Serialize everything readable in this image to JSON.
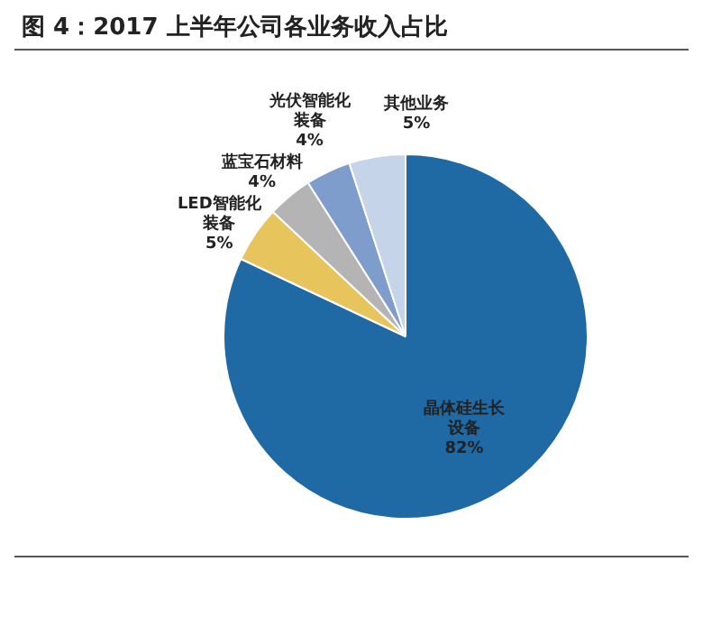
{
  "chart_data": {
    "type": "pie",
    "title": "图 4：2017 上半年公司各业务收入占比",
    "categories": [
      "晶体硅生长设备",
      "LED智能化装备",
      "蓝宝石材料",
      "光伏智能化装备",
      "其他业务"
    ],
    "values": [
      82,
      5,
      4,
      4,
      5
    ],
    "colors": [
      "#1f6aa5",
      "#e8c55c",
      "#b4b4b4",
      "#7f9dcc",
      "#c6d4ea"
    ],
    "value_labels": [
      "82%",
      "5%",
      "4%",
      "4%",
      "5%"
    ],
    "legend": false
  }
}
